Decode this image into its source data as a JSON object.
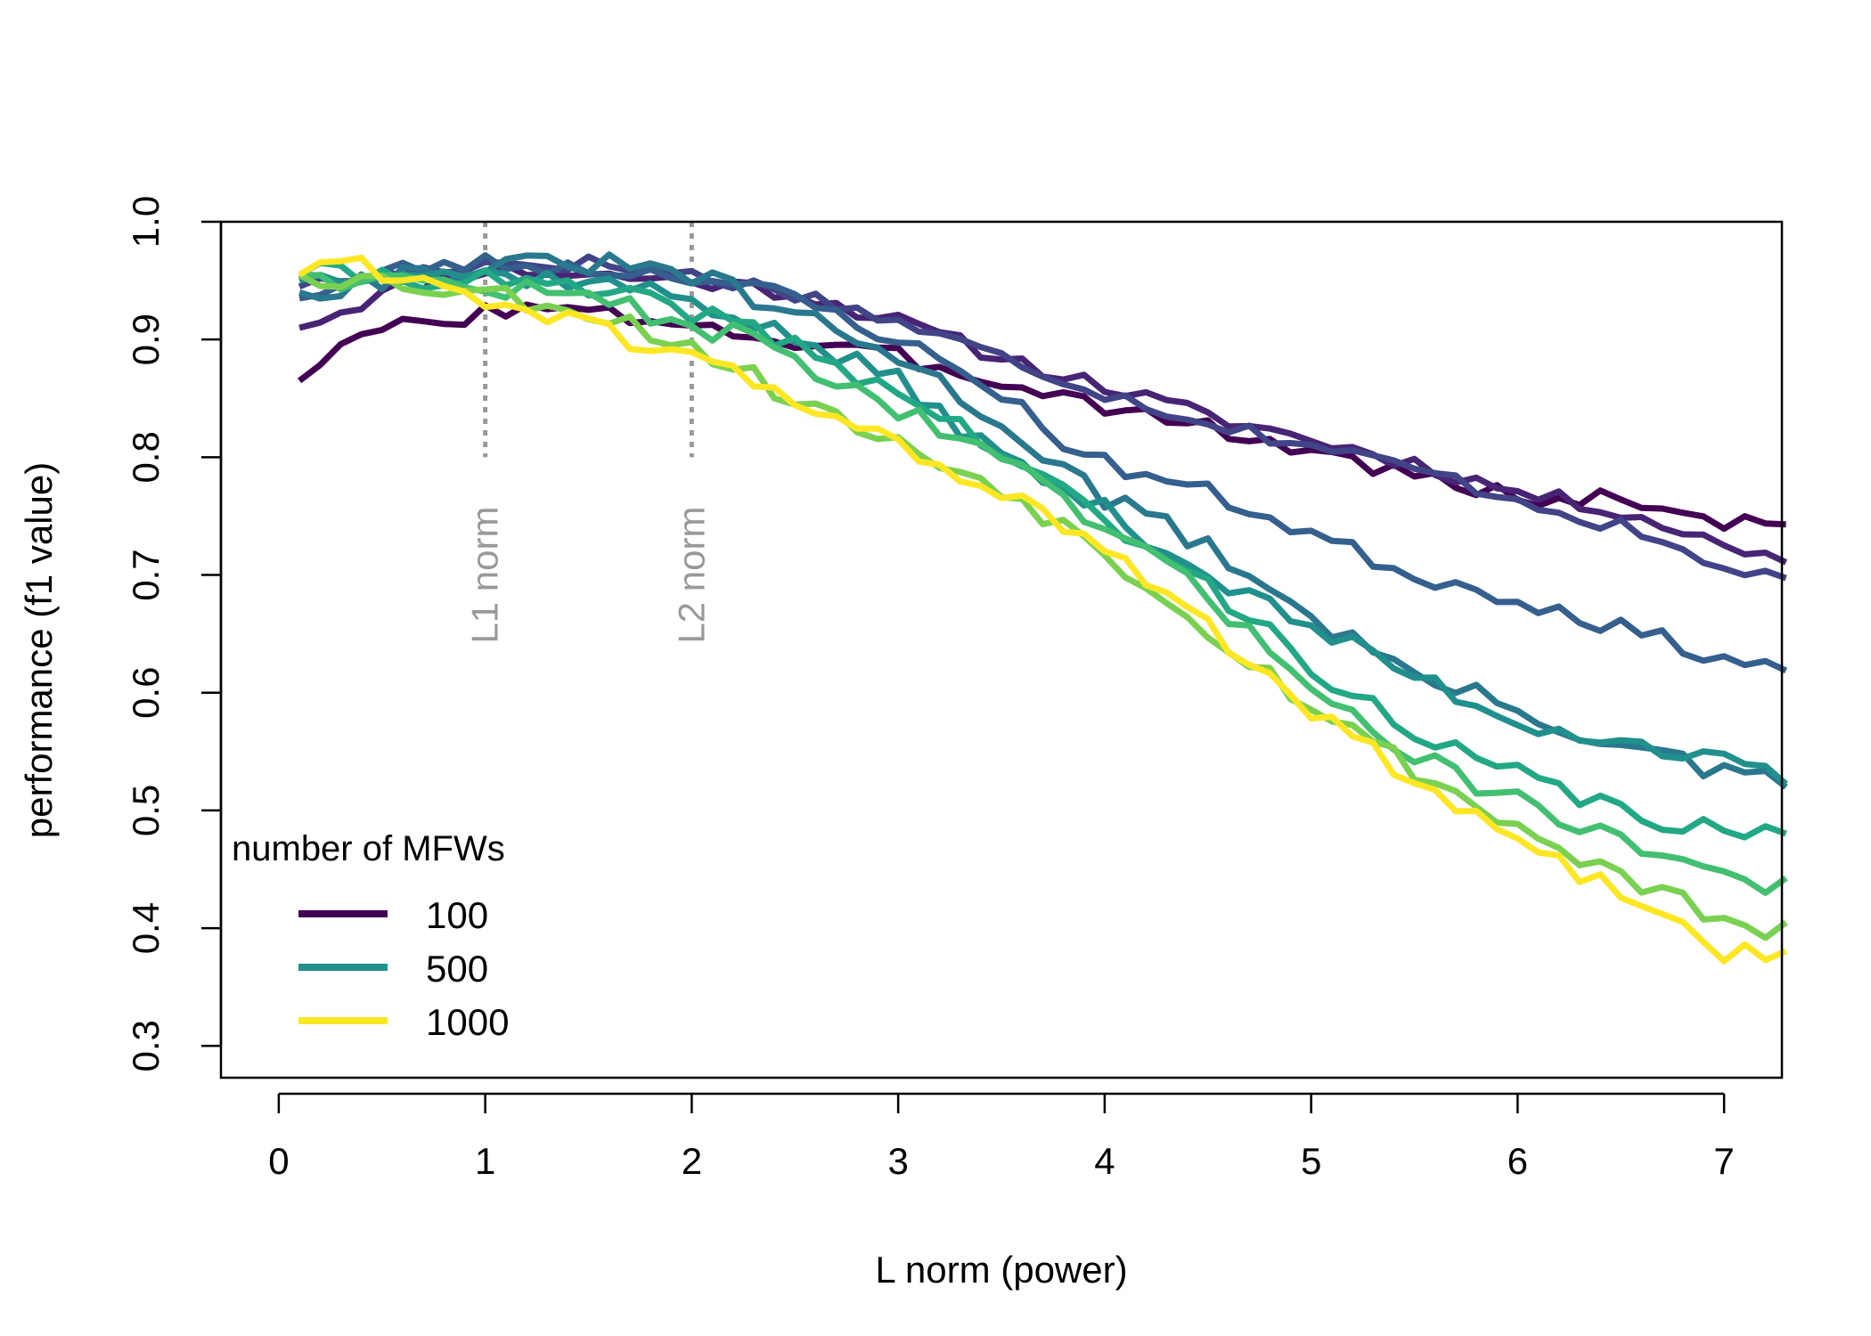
{
  "chart_data": {
    "type": "line",
    "title": "",
    "xlabel": "L norm (power)",
    "ylabel": "performance (f1 value)",
    "xlim": [
      -0.28,
      7.28
    ],
    "ylim": [
      0.273,
      1.0
    ],
    "xticks": [
      0,
      1,
      2,
      3,
      4,
      5,
      6,
      7
    ],
    "yticks": [
      0.3,
      0.4,
      0.5,
      0.6,
      0.7,
      0.8,
      0.9,
      1.0
    ],
    "ytick_labels": [
      "0.3",
      "0.4",
      "0.5",
      "0.6",
      "0.7",
      "0.8",
      "0.9",
      "1.0"
    ],
    "grid": false,
    "legend_position": "bottom-left",
    "legend": {
      "title": "number of MFWs",
      "entries": [
        {
          "label": "100",
          "color": "#440154"
        },
        {
          "label": "500",
          "color": "#21908C"
        },
        {
          "label": "1000",
          "color": "#FDE725"
        }
      ]
    },
    "annotations": [
      {
        "x": 1,
        "label": "L1 norm",
        "style": "dotted",
        "color": "#999999"
      },
      {
        "x": 2,
        "label": "L2 norm",
        "style": "dotted",
        "color": "#999999"
      }
    ],
    "x_step": 0.1,
    "series": [
      {
        "color": "#440154",
        "anchors": [
          [
            0.1,
            0.865
          ],
          [
            0.3,
            0.89
          ],
          [
            0.5,
            0.91
          ],
          [
            0.8,
            0.915
          ],
          [
            1.0,
            0.925
          ],
          [
            1.3,
            0.925
          ],
          [
            2.0,
            0.915
          ],
          [
            2.5,
            0.895
          ],
          [
            3.0,
            0.885
          ],
          [
            3.5,
            0.865
          ],
          [
            4.0,
            0.845
          ],
          [
            4.5,
            0.825
          ],
          [
            5.0,
            0.805
          ],
          [
            5.5,
            0.785
          ],
          [
            6.0,
            0.765
          ],
          [
            6.5,
            0.765
          ],
          [
            7.0,
            0.745
          ],
          [
            7.3,
            0.745
          ]
        ],
        "noise": 0.008,
        "seed": 3
      },
      {
        "color": "#482475",
        "anchors": [
          [
            0.1,
            0.91
          ],
          [
            0.3,
            0.925
          ],
          [
            0.6,
            0.945
          ],
          [
            1.0,
            0.96
          ],
          [
            1.5,
            0.955
          ],
          [
            2.0,
            0.95
          ],
          [
            2.5,
            0.94
          ],
          [
            3.0,
            0.915
          ],
          [
            3.5,
            0.885
          ],
          [
            4.0,
            0.86
          ],
          [
            4.5,
            0.835
          ],
          [
            5.0,
            0.815
          ],
          [
            5.5,
            0.795
          ],
          [
            6.0,
            0.77
          ],
          [
            6.5,
            0.755
          ],
          [
            7.0,
            0.725
          ],
          [
            7.3,
            0.715
          ]
        ],
        "noise": 0.007,
        "seed": 11
      },
      {
        "color": "#414487",
        "anchors": [
          [
            0.1,
            0.945
          ],
          [
            0.5,
            0.955
          ],
          [
            1.0,
            0.965
          ],
          [
            1.5,
            0.965
          ],
          [
            2.0,
            0.955
          ],
          [
            2.5,
            0.94
          ],
          [
            3.0,
            0.915
          ],
          [
            3.5,
            0.885
          ],
          [
            4.0,
            0.855
          ],
          [
            4.5,
            0.83
          ],
          [
            5.0,
            0.81
          ],
          [
            5.5,
            0.79
          ],
          [
            6.0,
            0.765
          ],
          [
            6.5,
            0.74
          ],
          [
            7.0,
            0.705
          ],
          [
            7.3,
            0.7
          ]
        ],
        "noise": 0.007,
        "seed": 17
      },
      {
        "color": "#355F8D",
        "anchors": [
          [
            0.1,
            0.935
          ],
          [
            0.6,
            0.96
          ],
          [
            1.0,
            0.965
          ],
          [
            1.5,
            0.96
          ],
          [
            2.0,
            0.955
          ],
          [
            2.5,
            0.935
          ],
          [
            3.0,
            0.9
          ],
          [
            3.5,
            0.855
          ],
          [
            3.9,
            0.8
          ],
          [
            4.5,
            0.77
          ],
          [
            5.0,
            0.735
          ],
          [
            5.5,
            0.7
          ],
          [
            6.0,
            0.68
          ],
          [
            6.5,
            0.655
          ],
          [
            7.0,
            0.63
          ],
          [
            7.3,
            0.62
          ]
        ],
        "noise": 0.008,
        "seed": 23
      },
      {
        "color": "#2A788E",
        "anchors": [
          [
            0.1,
            0.94
          ],
          [
            0.6,
            0.955
          ],
          [
            1.0,
            0.96
          ],
          [
            1.5,
            0.965
          ],
          [
            2.0,
            0.955
          ],
          [
            2.5,
            0.92
          ],
          [
            3.0,
            0.885
          ],
          [
            3.5,
            0.83
          ],
          [
            4.0,
            0.765
          ],
          [
            4.5,
            0.725
          ],
          [
            5.0,
            0.665
          ],
          [
            5.5,
            0.615
          ],
          [
            6.0,
            0.585
          ],
          [
            6.5,
            0.555
          ],
          [
            7.0,
            0.53
          ],
          [
            7.3,
            0.525
          ]
        ],
        "noise": 0.01,
        "seed": 31
      },
      {
        "color": "#21908C",
        "anchors": [
          [
            0.1,
            0.95
          ],
          [
            0.5,
            0.96
          ],
          [
            1.0,
            0.955
          ],
          [
            1.5,
            0.95
          ],
          [
            2.0,
            0.935
          ],
          [
            2.5,
            0.9
          ],
          [
            3.0,
            0.865
          ],
          [
            3.5,
            0.8
          ],
          [
            4.0,
            0.755
          ],
          [
            4.5,
            0.7
          ],
          [
            5.0,
            0.655
          ],
          [
            5.5,
            0.615
          ],
          [
            6.0,
            0.575
          ],
          [
            6.5,
            0.56
          ],
          [
            7.0,
            0.54
          ],
          [
            7.3,
            0.525
          ]
        ],
        "noise": 0.009,
        "seed": 37
      },
      {
        "color": "#22A884",
        "anchors": [
          [
            0.1,
            0.955
          ],
          [
            0.5,
            0.955
          ],
          [
            1.0,
            0.95
          ],
          [
            1.5,
            0.94
          ],
          [
            2.0,
            0.925
          ],
          [
            2.5,
            0.895
          ],
          [
            3.0,
            0.855
          ],
          [
            3.5,
            0.805
          ],
          [
            4.0,
            0.745
          ],
          [
            4.5,
            0.69
          ],
          [
            5.0,
            0.625
          ],
          [
            5.5,
            0.56
          ],
          [
            6.0,
            0.53
          ],
          [
            6.5,
            0.5
          ],
          [
            7.0,
            0.48
          ],
          [
            7.3,
            0.475
          ]
        ],
        "noise": 0.01,
        "seed": 41
      },
      {
        "color": "#43BF71",
        "anchors": [
          [
            0.1,
            0.955
          ],
          [
            0.5,
            0.95
          ],
          [
            1.0,
            0.945
          ],
          [
            1.5,
            0.935
          ],
          [
            2.0,
            0.915
          ],
          [
            2.5,
            0.885
          ],
          [
            3.0,
            0.84
          ],
          [
            3.5,
            0.795
          ],
          [
            4.0,
            0.74
          ],
          [
            4.5,
            0.68
          ],
          [
            5.0,
            0.61
          ],
          [
            5.5,
            0.545
          ],
          [
            6.0,
            0.51
          ],
          [
            6.5,
            0.475
          ],
          [
            7.0,
            0.445
          ],
          [
            7.3,
            0.435
          ]
        ],
        "noise": 0.01,
        "seed": 47
      },
      {
        "color": "#7AD151",
        "anchors": [
          [
            0.1,
            0.955
          ],
          [
            0.5,
            0.95
          ],
          [
            1.0,
            0.94
          ],
          [
            1.5,
            0.925
          ],
          [
            2.0,
            0.895
          ],
          [
            2.5,
            0.85
          ],
          [
            3.0,
            0.81
          ],
          [
            3.5,
            0.775
          ],
          [
            4.0,
            0.72
          ],
          [
            4.5,
            0.655
          ],
          [
            5.0,
            0.59
          ],
          [
            5.5,
            0.535
          ],
          [
            6.0,
            0.485
          ],
          [
            6.5,
            0.445
          ],
          [
            7.0,
            0.405
          ],
          [
            7.3,
            0.395
          ]
        ],
        "noise": 0.01,
        "seed": 53
      },
      {
        "color": "#FDE725",
        "anchors": [
          [
            0.1,
            0.955
          ],
          [
            0.3,
            0.965
          ],
          [
            0.6,
            0.955
          ],
          [
            1.0,
            0.935
          ],
          [
            1.5,
            0.91
          ],
          [
            2.0,
            0.885
          ],
          [
            2.5,
            0.85
          ],
          [
            3.0,
            0.81
          ],
          [
            3.5,
            0.77
          ],
          [
            4.0,
            0.72
          ],
          [
            4.5,
            0.655
          ],
          [
            5.0,
            0.585
          ],
          [
            5.5,
            0.525
          ],
          [
            6.0,
            0.47
          ],
          [
            6.5,
            0.43
          ],
          [
            7.0,
            0.38
          ],
          [
            7.3,
            0.375
          ]
        ],
        "noise": 0.009,
        "seed": 61
      }
    ]
  }
}
